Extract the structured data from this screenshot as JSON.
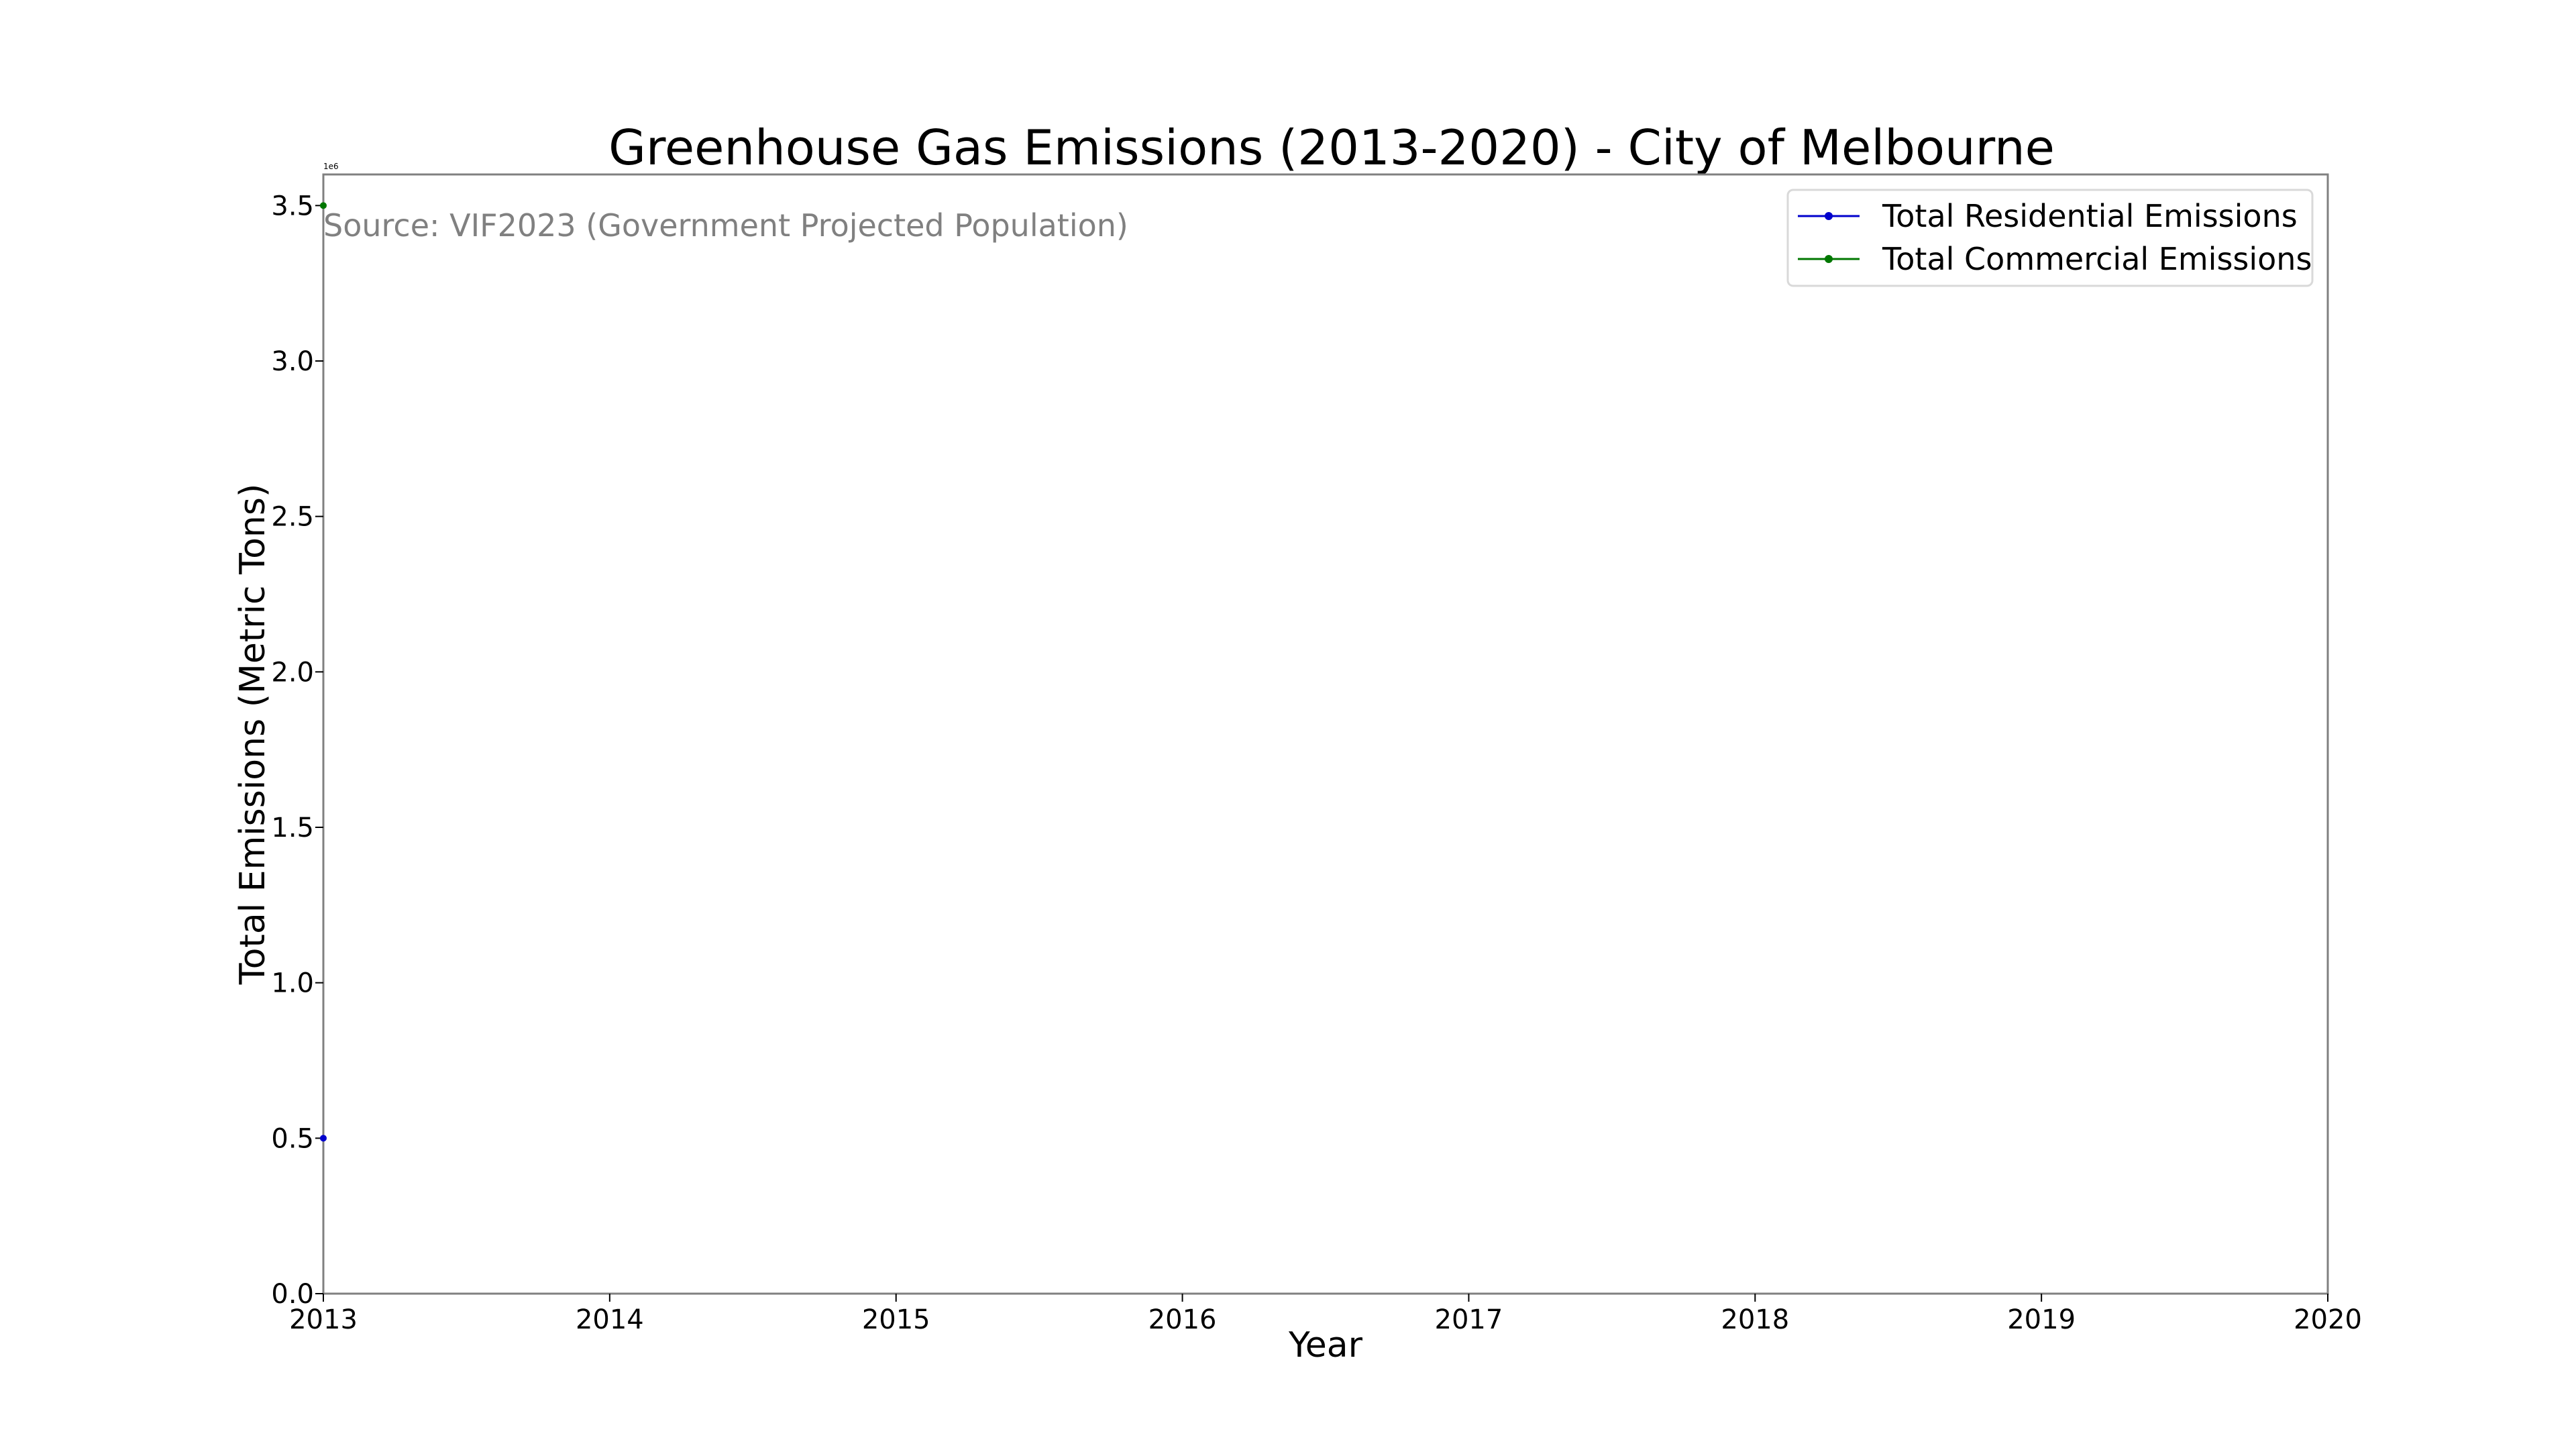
{
  "chart_data": {
    "type": "line",
    "title": "Greenhouse Gas Emissions (2013-2020) - City of Melbourne",
    "xlabel": "Year",
    "ylabel": "Total Emissions (Metric Tons)",
    "annotation": "Source: VIF2023 (Government Projected Population)",
    "y_offset_label": "1e6",
    "xlim": [
      2013,
      2020
    ],
    "ylim": [
      0,
      3600000
    ],
    "x_ticks": [
      2013,
      2014,
      2015,
      2016,
      2017,
      2018,
      2019,
      2020
    ],
    "y_ticks": [
      0,
      500000,
      1000000,
      1500000,
      2000000,
      2500000,
      3000000,
      3500000
    ],
    "y_tick_labels": [
      "0.0",
      "0.5",
      "1.0",
      "1.5",
      "2.0",
      "2.5",
      "3.0",
      "3.5"
    ],
    "grid": false,
    "legend_position": "top-right",
    "series": [
      {
        "name": "Total Residential Emissions",
        "color": "#0000cc",
        "marker": "circle",
        "x": [
          2013
        ],
        "y": [
          500000
        ]
      },
      {
        "name": "Total Commercial Emissions",
        "color": "#007700",
        "marker": "circle",
        "x": [
          2013
        ],
        "y": [
          3500000
        ]
      }
    ]
  }
}
